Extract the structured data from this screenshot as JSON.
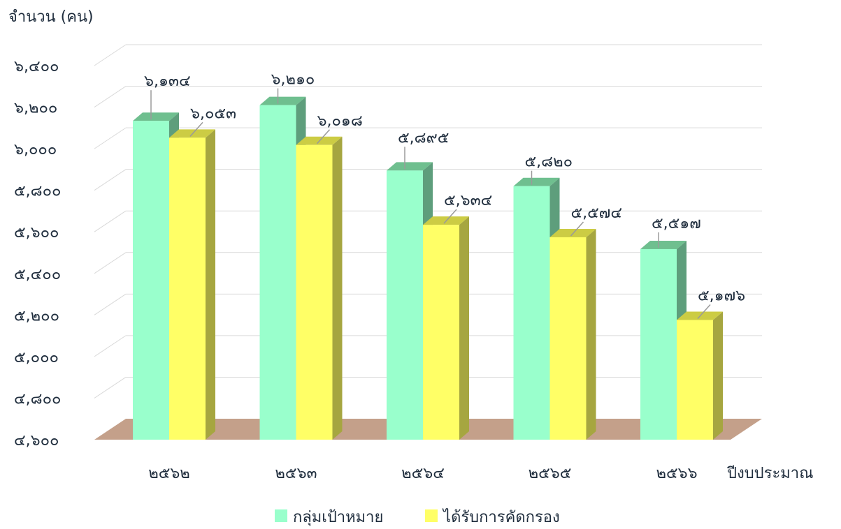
{
  "chart_data": {
    "type": "bar",
    "title": "",
    "ylabel": "จำนวน (คน)",
    "xlabel": "ปีงบประมาณ",
    "categories": [
      "๒๕๖๒",
      "๒๕๖๓",
      "๒๕๖๔",
      "๒๕๖๕",
      "๒๕๖๖"
    ],
    "series": [
      {
        "name": "กลุ่มเป้าหมาย",
        "values": [
          6134,
          6210,
          5895,
          5820,
          5517
        ],
        "labels": [
          "๖,๑๓๔",
          "๖,๒๑๐",
          "๕,๘๙๕",
          "๕,๘๒๐",
          "๕,๕๑๗"
        ],
        "color": "#99ffcc",
        "top_color": "#6fbf8f",
        "side_color": "#5e9e7c"
      },
      {
        "name": "ได้รับการคัดกรอง",
        "values": [
          6053,
          6018,
          5634,
          5574,
          5176
        ],
        "labels": [
          "๖,๐๕๓",
          "๖,๐๑๘",
          "๕,๖๓๔",
          "๕,๕๗๔",
          "๕,๑๗๖"
        ],
        "color": "#ffff66",
        "top_color": "#cccc44",
        "side_color": "#a6a640"
      }
    ],
    "ylim": [
      4600,
      6400
    ],
    "yticks": [
      4600,
      4800,
      5000,
      5200,
      5400,
      5600,
      5800,
      6000,
      6200,
      6400
    ],
    "ytick_labels": [
      "๔,๖๐๐",
      "๔,๘๐๐",
      "๕,๐๐๐",
      "๕,๒๐๐",
      "๕,๔๐๐",
      "๕,๖๐๐",
      "๕,๘๐๐",
      "๖,๐๐๐",
      "๖,๒๐๐",
      "๖,๔๐๐"
    ],
    "grid": true,
    "legend_position": "bottom",
    "floor_color": "#c4a08a"
  }
}
